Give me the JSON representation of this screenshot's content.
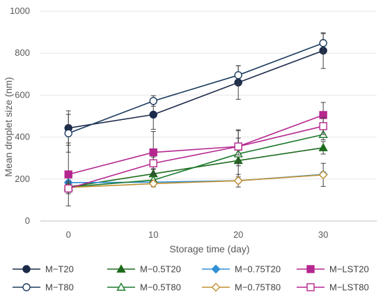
{
  "chart_data": {
    "type": "line",
    "xlabel": "Storage time (day)",
    "ylabel": "Mean droplet size (nm)",
    "x": [
      0,
      10,
      20,
      30
    ],
    "xticks": [
      "0",
      "10",
      "20",
      "30"
    ],
    "xlim": [
      -3.3,
      36.3
    ],
    "ylim": [
      0,
      1000
    ],
    "yticks": [
      "0",
      "200",
      "400",
      "600",
      "800",
      "1000"
    ],
    "legend_position": "bottom",
    "series": [
      {
        "name": "M−T20",
        "values": [
          443,
          507,
          660,
          812
        ],
        "errors": [
          82,
          70,
          80,
          85
        ],
        "color": "#1c2b4a",
        "marker": "circle",
        "filled": true
      },
      {
        "name": "M−0.5T20",
        "values": [
          162,
          225,
          288,
          349
        ],
        "errors": [
          25,
          25,
          25,
          30
        ],
        "color": "#1e6b1e",
        "marker": "triangle",
        "filled": true
      },
      {
        "name": "M−0.75T20",
        "values": [
          183,
          185,
          192,
          222
        ],
        "errors": [
          12,
          10,
          10,
          12
        ],
        "color": "#2e8fd6",
        "marker": "diamond",
        "filled": true
      },
      {
        "name": "M−LST20",
        "values": [
          222,
          327,
          355,
          505
        ],
        "errors": [
          150,
          100,
          80,
          60
        ],
        "color": "#b5278f",
        "marker": "square",
        "filled": true
      },
      {
        "name": "M−T80",
        "values": [
          418,
          572,
          695,
          848
        ],
        "errors": [
          90,
          25,
          45,
          45
        ],
        "color": "#1c3b5e",
        "marker": "circle",
        "filled": false
      },
      {
        "name": "M−0.5T80",
        "values": [
          162,
          195,
          320,
          412
        ],
        "errors": [
          25,
          25,
          110,
          25
        ],
        "color": "#1e7b2e",
        "marker": "triangle",
        "filled": false
      },
      {
        "name": "M−0.75T80",
        "values": [
          160,
          178,
          192,
          220
        ],
        "errors": [
          15,
          15,
          30,
          55
        ],
        "color": "#c09030",
        "marker": "diamond",
        "filled": false
      },
      {
        "name": "M−LST80",
        "values": [
          155,
          275,
          355,
          452
        ],
        "errors": [
          25,
          30,
          40,
          40
        ],
        "color": "#b5278f",
        "marker": "square",
        "filled": false
      }
    ]
  }
}
